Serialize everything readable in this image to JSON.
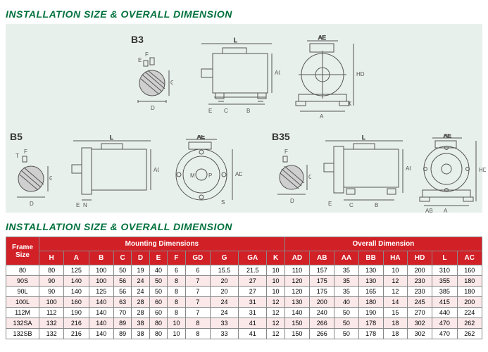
{
  "titles": {
    "upper": "INSTALLATION SIZE & OVERALL DIMENSION",
    "lower": "INSTALLATION SIZE & OVERALL DIMENSION"
  },
  "diagram_labels": {
    "b3": "B3",
    "b5": "B5",
    "b35": "B35"
  },
  "dim_letters": [
    "L",
    "AE",
    "E",
    "F",
    "D",
    "G",
    "C",
    "B",
    "A",
    "AC",
    "HD",
    "K",
    "AD",
    "M",
    "P",
    "S",
    "N",
    "T"
  ],
  "table": {
    "group_headers": {
      "frame": "Frame Size",
      "mounting": "Mounting Dimensions",
      "overall": "Overall Dimension"
    },
    "columns_mounting": [
      "H",
      "A",
      "B",
      "C",
      "D",
      "E",
      "F",
      "GD",
      "G",
      "GA",
      "K"
    ],
    "columns_overall": [
      "AD",
      "AB",
      "AA",
      "BB",
      "HA",
      "HD",
      "L",
      "AC"
    ],
    "rows": [
      {
        "frame": "80",
        "m": [
          80,
          125,
          100,
          50,
          19,
          40,
          6,
          6,
          15.5,
          21.5,
          10
        ],
        "o": [
          110,
          157,
          35,
          130,
          10,
          200,
          310,
          160
        ]
      },
      {
        "frame": "90S",
        "m": [
          90,
          140,
          100,
          56,
          24,
          50,
          8,
          7,
          20,
          27,
          10
        ],
        "o": [
          120,
          175,
          35,
          130,
          12,
          230,
          355,
          180
        ]
      },
      {
        "frame": "90L",
        "m": [
          90,
          140,
          125,
          56,
          24,
          50,
          8,
          7,
          20,
          27,
          10
        ],
        "o": [
          120,
          175,
          35,
          165,
          12,
          230,
          385,
          180
        ]
      },
      {
        "frame": "100L",
        "m": [
          100,
          160,
          140,
          63,
          28,
          60,
          8,
          7,
          24,
          31,
          12
        ],
        "o": [
          130,
          200,
          40,
          180,
          14,
          245,
          415,
          200
        ]
      },
      {
        "frame": "112M",
        "m": [
          112,
          190,
          140,
          70,
          28,
          60,
          8,
          7,
          24,
          31,
          12
        ],
        "o": [
          140,
          240,
          50,
          190,
          15,
          270,
          440,
          224
        ]
      },
      {
        "frame": "132SA",
        "m": [
          132,
          216,
          140,
          89,
          38,
          80,
          10,
          8,
          33,
          41,
          12
        ],
        "o": [
          150,
          266,
          50,
          178,
          18,
          302,
          470,
          262
        ]
      },
      {
        "frame": "132SB",
        "m": [
          132,
          216,
          140,
          89,
          38,
          80,
          10,
          8,
          33,
          41,
          12
        ],
        "o": [
          150,
          266,
          50,
          178,
          18,
          302,
          470,
          262
        ]
      }
    ],
    "colors": {
      "header_bg": "#d22027",
      "header_fg": "#ffffff",
      "row_alt_bg": "#fbe8e9",
      "border": "#888888"
    }
  }
}
